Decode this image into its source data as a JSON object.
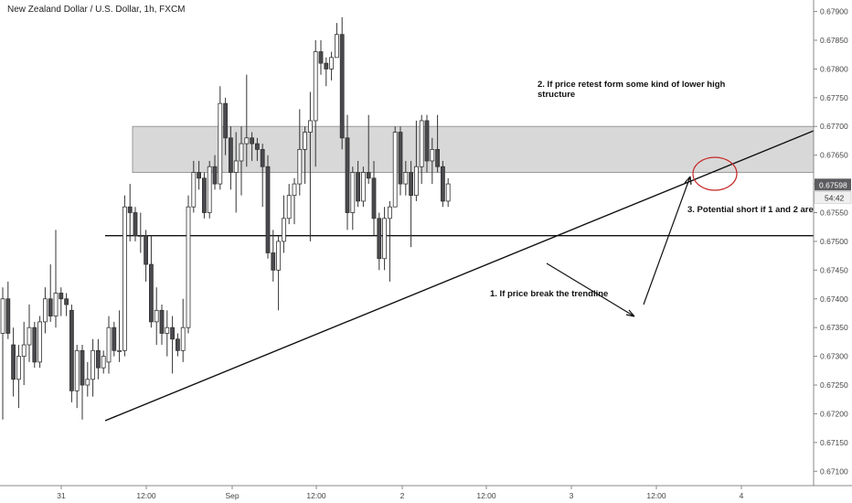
{
  "chart_data": {
    "type": "candlestick",
    "title": "New Zealand Dollar / U.S. Dollar, 1h, FXCM",
    "ylim": [
      0.67075,
      0.6792
    ],
    "y_ticks": [
      0.671,
      0.6715,
      0.672,
      0.6725,
      0.673,
      0.6735,
      0.674,
      0.6745,
      0.675,
      0.6755,
      0.676,
      0.6765,
      0.677,
      0.6775,
      0.678,
      0.6785,
      0.679
    ],
    "y_tick_labels": [
      "0.67100",
      "0.67150",
      "0.67200",
      "0.67250",
      "0.67300",
      "0.67350",
      "0.67400",
      "0.67450",
      "0.67500",
      "0.67550",
      "0.67600",
      "0.67650",
      "0.67700",
      "0.67750",
      "0.67800",
      "0.67850",
      "0.67900"
    ],
    "x_labels": [
      "31",
      "12:00",
      "Sep",
      "12:00",
      "2",
      "12:00",
      "3",
      "12:00",
      "4"
    ],
    "last_price_label": "0.67598",
    "countdown_label": "54:42",
    "grid": false,
    "candles": [
      {
        "o": 0.6734,
        "h": 0.6742,
        "l": 0.6719,
        "c": 0.674
      },
      {
        "o": 0.674,
        "h": 0.6743,
        "l": 0.6733,
        "c": 0.6734
      },
      {
        "o": 0.6732,
        "h": 0.6735,
        "l": 0.6723,
        "c": 0.6726
      },
      {
        "o": 0.6726,
        "h": 0.6732,
        "l": 0.6721,
        "c": 0.673
      },
      {
        "o": 0.673,
        "h": 0.6736,
        "l": 0.6725,
        "c": 0.6732
      },
      {
        "o": 0.6732,
        "h": 0.6739,
        "l": 0.6729,
        "c": 0.6735
      },
      {
        "o": 0.6735,
        "h": 0.6736,
        "l": 0.6728,
        "c": 0.6729
      },
      {
        "o": 0.6729,
        "h": 0.6737,
        "l": 0.6728,
        "c": 0.6736
      },
      {
        "o": 0.6736,
        "h": 0.6742,
        "l": 0.6734,
        "c": 0.674
      },
      {
        "o": 0.674,
        "h": 0.6746,
        "l": 0.6736,
        "c": 0.6737
      },
      {
        "o": 0.6737,
        "h": 0.6752,
        "l": 0.6735,
        "c": 0.6741
      },
      {
        "o": 0.6741,
        "h": 0.6742,
        "l": 0.6737,
        "c": 0.674
      },
      {
        "o": 0.674,
        "h": 0.6741,
        "l": 0.6737,
        "c": 0.6739
      },
      {
        "o": 0.6738,
        "h": 0.6739,
        "l": 0.6722,
        "c": 0.6724
      },
      {
        "o": 0.6724,
        "h": 0.6732,
        "l": 0.6721,
        "c": 0.6731
      },
      {
        "o": 0.6731,
        "h": 0.6732,
        "l": 0.6719,
        "c": 0.6725
      },
      {
        "o": 0.6725,
        "h": 0.6729,
        "l": 0.6723,
        "c": 0.6726
      },
      {
        "o": 0.6726,
        "h": 0.6733,
        "l": 0.6723,
        "c": 0.6731
      },
      {
        "o": 0.6731,
        "h": 0.6733,
        "l": 0.6726,
        "c": 0.6728
      },
      {
        "o": 0.6728,
        "h": 0.6731,
        "l": 0.6727,
        "c": 0.673
      },
      {
        "o": 0.6729,
        "h": 0.6737,
        "l": 0.6727,
        "c": 0.6735
      },
      {
        "o": 0.6735,
        "h": 0.6736,
        "l": 0.673,
        "c": 0.6731
      },
      {
        "o": 0.6731,
        "h": 0.6738,
        "l": 0.6729,
        "c": 0.6731
      },
      {
        "o": 0.6731,
        "h": 0.6758,
        "l": 0.673,
        "c": 0.6756
      },
      {
        "o": 0.6756,
        "h": 0.676,
        "l": 0.675,
        "c": 0.6755
      },
      {
        "o": 0.6755,
        "h": 0.6756,
        "l": 0.675,
        "c": 0.6751
      },
      {
        "o": 0.6751,
        "h": 0.6755,
        "l": 0.6748,
        "c": 0.6751
      },
      {
        "o": 0.6751,
        "h": 0.6752,
        "l": 0.6743,
        "c": 0.6746
      },
      {
        "o": 0.6746,
        "h": 0.6751,
        "l": 0.6735,
        "c": 0.6736
      },
      {
        "o": 0.6736,
        "h": 0.6742,
        "l": 0.6732,
        "c": 0.6738
      },
      {
        "o": 0.6738,
        "h": 0.6739,
        "l": 0.6732,
        "c": 0.6734
      },
      {
        "o": 0.6734,
        "h": 0.6738,
        "l": 0.673,
        "c": 0.6735
      },
      {
        "o": 0.6735,
        "h": 0.6737,
        "l": 0.6727,
        "c": 0.6733
      },
      {
        "o": 0.6733,
        "h": 0.6734,
        "l": 0.673,
        "c": 0.6731
      },
      {
        "o": 0.6731,
        "h": 0.674,
        "l": 0.6729,
        "c": 0.6735
      },
      {
        "o": 0.6735,
        "h": 0.6758,
        "l": 0.6734,
        "c": 0.6756
      },
      {
        "o": 0.6756,
        "h": 0.6764,
        "l": 0.6755,
        "c": 0.6762
      },
      {
        "o": 0.6762,
        "h": 0.6764,
        "l": 0.6759,
        "c": 0.6761
      },
      {
        "o": 0.6761,
        "h": 0.6762,
        "l": 0.6754,
        "c": 0.6755
      },
      {
        "o": 0.6755,
        "h": 0.6764,
        "l": 0.6754,
        "c": 0.6763
      },
      {
        "o": 0.6763,
        "h": 0.6765,
        "l": 0.6759,
        "c": 0.676
      },
      {
        "o": 0.676,
        "h": 0.6777,
        "l": 0.6759,
        "c": 0.6774
      },
      {
        "o": 0.6774,
        "h": 0.6775,
        "l": 0.6765,
        "c": 0.6768
      },
      {
        "o": 0.6768,
        "h": 0.677,
        "l": 0.6759,
        "c": 0.6762
      },
      {
        "o": 0.6762,
        "h": 0.6769,
        "l": 0.6755,
        "c": 0.6764
      },
      {
        "o": 0.6764,
        "h": 0.677,
        "l": 0.6758,
        "c": 0.6767
      },
      {
        "o": 0.6767,
        "h": 0.6779,
        "l": 0.6763,
        "c": 0.6768
      },
      {
        "o": 0.6768,
        "h": 0.6769,
        "l": 0.6764,
        "c": 0.6767
      },
      {
        "o": 0.6767,
        "h": 0.6768,
        "l": 0.6764,
        "c": 0.6766
      },
      {
        "o": 0.6766,
        "h": 0.6767,
        "l": 0.6756,
        "c": 0.6763
      },
      {
        "o": 0.6763,
        "h": 0.6765,
        "l": 0.6747,
        "c": 0.6748
      },
      {
        "o": 0.6748,
        "h": 0.6752,
        "l": 0.6743,
        "c": 0.6745
      },
      {
        "o": 0.6745,
        "h": 0.6751,
        "l": 0.6738,
        "c": 0.675
      },
      {
        "o": 0.675,
        "h": 0.6758,
        "l": 0.6748,
        "c": 0.6754
      },
      {
        "o": 0.6754,
        "h": 0.676,
        "l": 0.6753,
        "c": 0.6758
      },
      {
        "o": 0.6758,
        "h": 0.6761,
        "l": 0.6753,
        "c": 0.676
      },
      {
        "o": 0.676,
        "h": 0.6773,
        "l": 0.6758,
        "c": 0.6766
      },
      {
        "o": 0.6766,
        "h": 0.677,
        "l": 0.676,
        "c": 0.6769
      },
      {
        "o": 0.6769,
        "h": 0.6776,
        "l": 0.675,
        "c": 0.6771
      },
      {
        "o": 0.6771,
        "h": 0.6785,
        "l": 0.6763,
        "c": 0.6783
      },
      {
        "o": 0.6783,
        "h": 0.6785,
        "l": 0.6779,
        "c": 0.6781
      },
      {
        "o": 0.6781,
        "h": 0.6782,
        "l": 0.6777,
        "c": 0.678
      },
      {
        "o": 0.678,
        "h": 0.6783,
        "l": 0.6778,
        "c": 0.6782
      },
      {
        "o": 0.6782,
        "h": 0.6788,
        "l": 0.6782,
        "c": 0.6786
      },
      {
        "o": 0.6786,
        "h": 0.6789,
        "l": 0.6766,
        "c": 0.6768
      },
      {
        "o": 0.6768,
        "h": 0.6772,
        "l": 0.6752,
        "c": 0.6755
      },
      {
        "o": 0.6755,
        "h": 0.6763,
        "l": 0.6752,
        "c": 0.6762
      },
      {
        "o": 0.6762,
        "h": 0.6764,
        "l": 0.6756,
        "c": 0.6757
      },
      {
        "o": 0.6757,
        "h": 0.6763,
        "l": 0.6756,
        "c": 0.6762
      },
      {
        "o": 0.6762,
        "h": 0.6772,
        "l": 0.676,
        "c": 0.6761
      },
      {
        "o": 0.6761,
        "h": 0.6764,
        "l": 0.6751,
        "c": 0.6754
      },
      {
        "o": 0.6754,
        "h": 0.6755,
        "l": 0.6745,
        "c": 0.6747
      },
      {
        "o": 0.6747,
        "h": 0.6756,
        "l": 0.6745,
        "c": 0.6754
      },
      {
        "o": 0.6754,
        "h": 0.6757,
        "l": 0.6743,
        "c": 0.6756
      },
      {
        "o": 0.6756,
        "h": 0.677,
        "l": 0.6756,
        "c": 0.6769
      },
      {
        "o": 0.6769,
        "h": 0.677,
        "l": 0.6758,
        "c": 0.676
      },
      {
        "o": 0.676,
        "h": 0.6764,
        "l": 0.6758,
        "c": 0.6762
      },
      {
        "o": 0.6762,
        "h": 0.6764,
        "l": 0.6749,
        "c": 0.6758
      },
      {
        "o": 0.6758,
        "h": 0.6771,
        "l": 0.6757,
        "c": 0.6763
      },
      {
        "o": 0.6763,
        "h": 0.6772,
        "l": 0.676,
        "c": 0.6771
      },
      {
        "o": 0.6771,
        "h": 0.6772,
        "l": 0.6762,
        "c": 0.6764
      },
      {
        "o": 0.6764,
        "h": 0.6768,
        "l": 0.676,
        "c": 0.6766
      },
      {
        "o": 0.6766,
        "h": 0.6772,
        "l": 0.6762,
        "c": 0.6763
      },
      {
        "o": 0.6763,
        "h": 0.6764,
        "l": 0.6756,
        "c": 0.6757
      },
      {
        "o": 0.6757,
        "h": 0.6761,
        "l": 0.6756,
        "c": 0.676
      }
    ],
    "zone": {
      "low": 0.6762,
      "high": 0.677
    },
    "horizontal_line": 0.6751,
    "annotations": [
      "2. If price retest form some kind of lower high",
      "structure",
      "1. If price break the trendline",
      "3. Potential short if 1 and 2 are"
    ],
    "colors": {
      "bull": "#ffffff",
      "bear": "#4a4a4e",
      "zone": "#d8d8d8",
      "zone_border": "#9a9a9a",
      "circle": "#c62828",
      "line": "#111111",
      "last_price_bg": "#5c5c60"
    }
  }
}
